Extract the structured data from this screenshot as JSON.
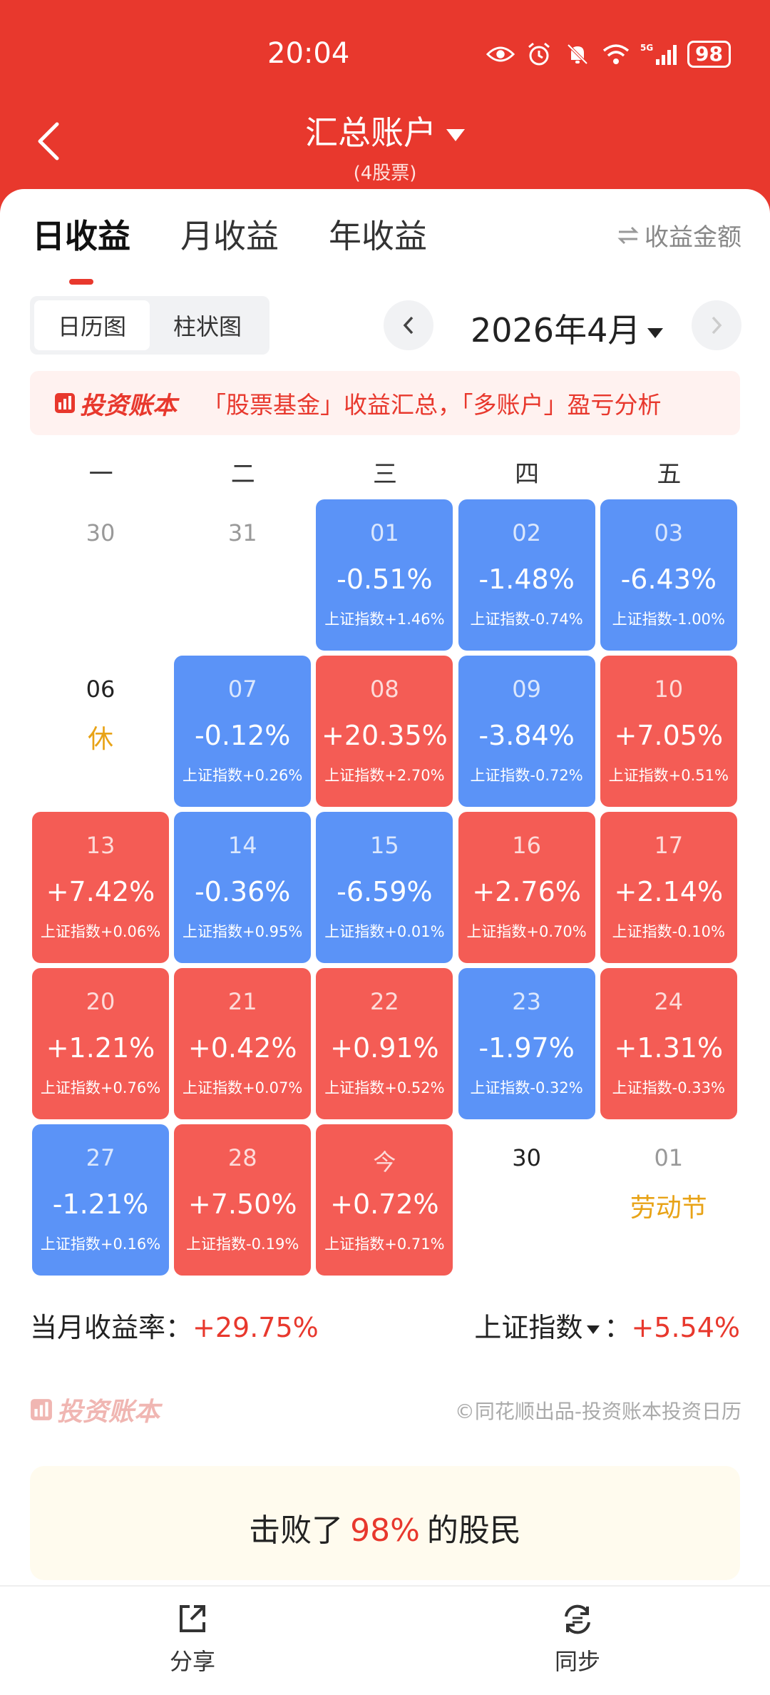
{
  "status": {
    "time": "20:04",
    "battery": "98",
    "network": "5G"
  },
  "header": {
    "title": "汇总账户",
    "subtitle": "(4股票)"
  },
  "tabs": [
    "日收益",
    "月收益",
    "年收益"
  ],
  "amount_toggle": "收益金额",
  "view_switch": [
    "日历图",
    "柱状图"
  ],
  "month": "2026年4月",
  "banner": {
    "brand": "投资账本",
    "text": "「股票基金」收益汇总，「多账户」盈亏分析"
  },
  "weekdays": [
    "一",
    "二",
    "三",
    "四",
    "五"
  ],
  "calendar": [
    {
      "day": "30",
      "kind": "plain"
    },
    {
      "day": "31",
      "kind": "plain"
    },
    {
      "day": "01",
      "kind": "blue",
      "pct": "-0.51%",
      "index": "上证指数+1.46%"
    },
    {
      "day": "02",
      "kind": "blue",
      "pct": "-1.48%",
      "index": "上证指数-0.74%"
    },
    {
      "day": "03",
      "kind": "blue",
      "pct": "-6.43%",
      "index": "上证指数-1.00%"
    },
    {
      "day": "06",
      "kind": "plain-black",
      "note": "休"
    },
    {
      "day": "07",
      "kind": "blue",
      "pct": "-0.12%",
      "index": "上证指数+0.26%"
    },
    {
      "day": "08",
      "kind": "red",
      "pct": "+20.35%",
      "index": "上证指数+2.70%"
    },
    {
      "day": "09",
      "kind": "blue",
      "pct": "-3.84%",
      "index": "上证指数-0.72%"
    },
    {
      "day": "10",
      "kind": "red",
      "pct": "+7.05%",
      "index": "上证指数+0.51%"
    },
    {
      "day": "13",
      "kind": "red",
      "pct": "+7.42%",
      "index": "上证指数+0.06%"
    },
    {
      "day": "14",
      "kind": "blue",
      "pct": "-0.36%",
      "index": "上证指数+0.95%"
    },
    {
      "day": "15",
      "kind": "blue",
      "pct": "-6.59%",
      "index": "上证指数+0.01%"
    },
    {
      "day": "16",
      "kind": "red",
      "pct": "+2.76%",
      "index": "上证指数+0.70%"
    },
    {
      "day": "17",
      "kind": "red",
      "pct": "+2.14%",
      "index": "上证指数-0.10%"
    },
    {
      "day": "20",
      "kind": "red",
      "pct": "+1.21%",
      "index": "上证指数+0.76%"
    },
    {
      "day": "21",
      "kind": "red",
      "pct": "+0.42%",
      "index": "上证指数+0.07%"
    },
    {
      "day": "22",
      "kind": "red",
      "pct": "+0.91%",
      "index": "上证指数+0.52%"
    },
    {
      "day": "23",
      "kind": "blue",
      "pct": "-1.97%",
      "index": "上证指数-0.32%"
    },
    {
      "day": "24",
      "kind": "red",
      "pct": "+1.31%",
      "index": "上证指数-0.33%"
    },
    {
      "day": "27",
      "kind": "blue",
      "pct": "-1.21%",
      "index": "上证指数+0.16%"
    },
    {
      "day": "28",
      "kind": "red",
      "pct": "+7.50%",
      "index": "上证指数-0.19%"
    },
    {
      "day": "今",
      "kind": "red",
      "pct": "+0.72%",
      "index": "上证指数+0.71%"
    },
    {
      "day": "30",
      "kind": "plain-black"
    },
    {
      "day": "01",
      "kind": "plain",
      "note": "劳动节"
    }
  ],
  "summary": {
    "label": "当月收益率：",
    "value": "+29.75%",
    "index_label": "上证指数",
    "index_sep": "：",
    "index_value": "+5.54%"
  },
  "footer": {
    "brand": "投资账本",
    "credit": "©同花顺出品-投资账本投资日历"
  },
  "beat": {
    "prefix": "击败了",
    "percent": "98%",
    "suffix": "的股民"
  },
  "tabbar": {
    "share": "分享",
    "sync": "同步"
  },
  "colors": {
    "red": "#f45c55",
    "blue": "#5b93f7",
    "header": "#e8382d"
  }
}
